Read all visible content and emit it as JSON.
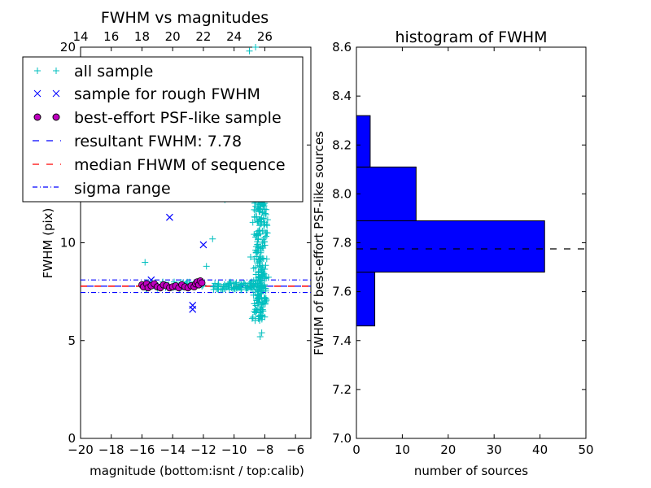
{
  "chart_data": [
    {
      "type": "scatter",
      "title": "FWHM vs magnitudes",
      "xlabel": "magnitude (bottom:isnt / top:calib)",
      "ylabel": "FWHM (pix)",
      "xlim": [
        -20,
        -5
      ],
      "ylim": [
        0,
        20
      ],
      "xticks": [
        -20,
        -18,
        -16,
        -14,
        -12,
        -10,
        -8,
        -6
      ],
      "yticks": [
        0,
        5,
        10,
        15,
        20
      ],
      "top_axis_ticks": [
        14,
        16,
        18,
        20,
        22,
        24,
        26
      ],
      "top_axis_offset": 34,
      "colors": {
        "all_sample": "#00bfbf",
        "rough_sample": "#0000ff",
        "best_sample_fill": "#bf00bf",
        "resultant": "#0000ff",
        "median": "#ff0000",
        "sigma": "#0000ff"
      },
      "legend": {
        "placement": "upper-left",
        "entries": [
          "all sample",
          "sample for rough FWHM",
          "best-effort PSF-like sample",
          "resultant FWHM: 7.78",
          "median FHWM of sequence",
          "sigma range"
        ]
      },
      "resultant_fwhm": 7.78,
      "median_fwhm": 7.78,
      "sigma_range": [
        7.46,
        8.1
      ],
      "series": [
        {
          "name": "sample for rough FWHM",
          "marker": "x",
          "x": [
            -15.4,
            -14.2,
            -12.7,
            -12.7,
            -12.0
          ],
          "y": [
            8.1,
            11.3,
            6.8,
            6.6,
            9.9
          ]
        },
        {
          "name": "best-effort PSF-like sample",
          "marker": "o",
          "x": [
            -16.0,
            -15.9,
            -15.7,
            -15.6,
            -15.4,
            -15.2,
            -15.0,
            -14.8,
            -14.6,
            -14.4,
            -14.2,
            -14.0,
            -13.8,
            -13.6,
            -13.4,
            -13.2,
            -13.0,
            -12.8,
            -12.6,
            -12.5,
            -12.4,
            -12.3,
            -12.2,
            -12.1
          ],
          "y": [
            7.85,
            7.75,
            7.9,
            7.7,
            7.8,
            7.9,
            7.75,
            7.7,
            7.85,
            7.8,
            7.7,
            7.75,
            7.8,
            7.7,
            7.85,
            7.75,
            7.7,
            7.8,
            7.75,
            7.9,
            8.0,
            7.85,
            8.05,
            7.95
          ]
        }
      ]
    },
    {
      "type": "bar",
      "orientation": "horizontal",
      "title": "histogram of FWHM",
      "xlabel": "number of sources",
      "ylabel": "FWHM of best-effort PSF-like sources",
      "xlim": [
        0,
        50
      ],
      "ylim": [
        7.0,
        8.6
      ],
      "xticks": [
        0,
        10,
        20,
        30,
        40,
        50
      ],
      "yticks": [
        "7.0",
        "7.2",
        "7.4",
        "7.6",
        "7.8",
        "8.0",
        "8.2",
        "8.4",
        "8.6"
      ],
      "bar_color": "#0000ff",
      "median_line": 7.775,
      "bins": [
        {
          "low": 7.46,
          "high": 7.68,
          "count": 4
        },
        {
          "low": 7.68,
          "high": 7.89,
          "count": 41
        },
        {
          "low": 7.89,
          "high": 8.11,
          "count": 13
        },
        {
          "low": 8.11,
          "high": 8.32,
          "count": 3
        }
      ]
    }
  ]
}
